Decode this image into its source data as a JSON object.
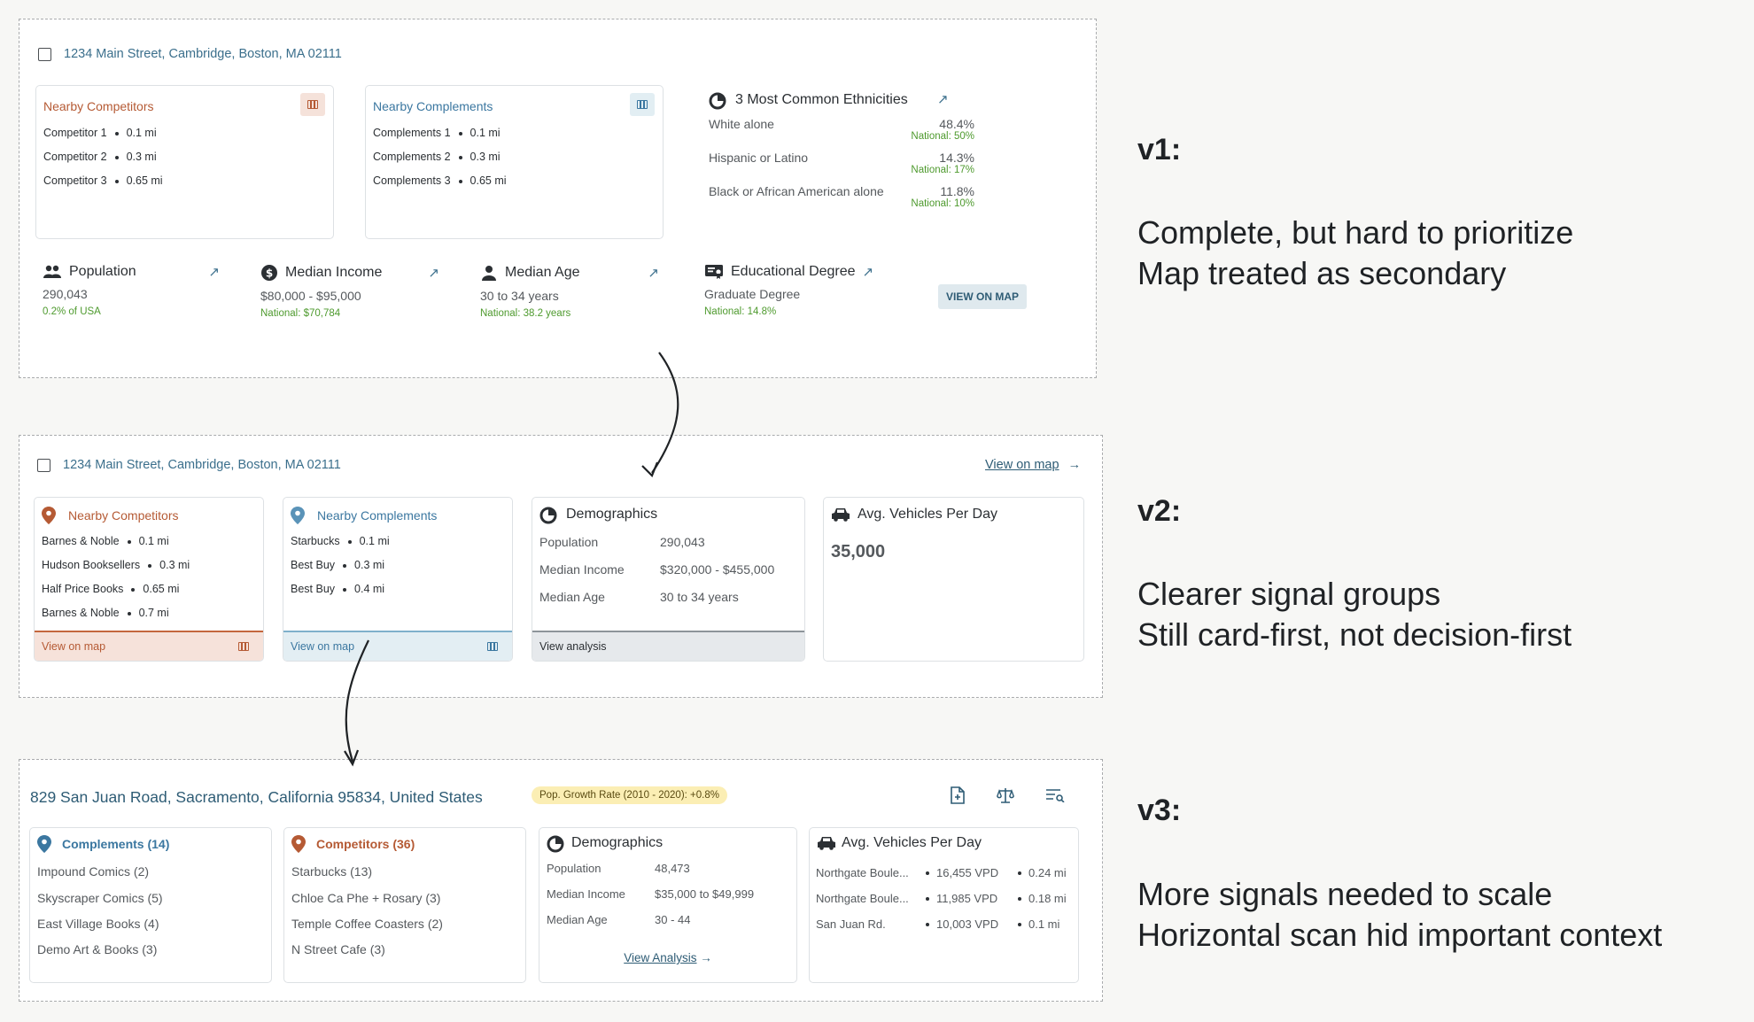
{
  "v1": {
    "address": "1234 Main Street, Cambridge, Boston, MA 02111",
    "competitors": {
      "title": "Nearby Competitors",
      "items": [
        {
          "name": "Competitor 1",
          "dist": "0.1 mi"
        },
        {
          "name": "Competitor 2",
          "dist": "0.3 mi"
        },
        {
          "name": "Competitor 3",
          "dist": "0.65 mi"
        }
      ]
    },
    "complements": {
      "title": "Nearby Complements",
      "items": [
        {
          "name": "Complements 1",
          "dist": "0.1 mi"
        },
        {
          "name": "Complements 2",
          "dist": "0.3 mi"
        },
        {
          "name": "Complements 3",
          "dist": "0.65 mi"
        }
      ]
    },
    "ethnicities": {
      "title": "3 Most Common Ethnicities",
      "items": [
        {
          "name": "White alone",
          "value": "48.4%",
          "national": "National: 50%"
        },
        {
          "name": "Hispanic or Latino",
          "value": "14.3%",
          "national": "National: 17%"
        },
        {
          "name": "Black or African American alone",
          "value": "11.8%",
          "national": "National: 10%"
        }
      ]
    },
    "metrics": [
      {
        "label": "Population",
        "value": "290,043",
        "note": "0.2% of USA"
      },
      {
        "label": "Median Income",
        "value": "$80,000 - $95,000",
        "note": "National: $70,784"
      },
      {
        "label": "Median Age",
        "value": "30 to 34 years",
        "note": "National: 38.2 years"
      },
      {
        "label": "Educational Degree",
        "value": "Graduate Degree",
        "note": "National: 14.8%"
      }
    ],
    "view_on_map": "VIEW ON MAP"
  },
  "v2": {
    "address": "1234 Main Street, Cambridge, Boston, MA 02111",
    "view_on_map_link": "View on map",
    "competitors": {
      "title": "Nearby Competitors",
      "items": [
        {
          "name": "Barnes & Noble",
          "dist": "0.1 mi"
        },
        {
          "name": "Hudson Booksellers",
          "dist": "0.3 mi"
        },
        {
          "name": "Half Price Books",
          "dist": "0.65 mi"
        },
        {
          "name": "Barnes & Noble",
          "dist": "0.7 mi"
        }
      ],
      "footer": "View on map"
    },
    "complements": {
      "title": "Nearby Complements",
      "items": [
        {
          "name": "Starbucks",
          "dist": "0.1 mi"
        },
        {
          "name": "Best Buy",
          "dist": "0.3 mi"
        },
        {
          "name": "Best Buy",
          "dist": "0.4 mi"
        }
      ],
      "footer": "View on map"
    },
    "demographics": {
      "title": "Demographics",
      "rows": [
        {
          "label": "Population",
          "value": "290,043"
        },
        {
          "label": "Median Income",
          "value": "$320,000 - $455,000"
        },
        {
          "label": "Median Age",
          "value": "30 to 34 years"
        }
      ],
      "footer": "View analysis"
    },
    "vehicles": {
      "title": "Avg. Vehicles Per Day",
      "value": "35,000"
    }
  },
  "v3": {
    "address": "829 San Juan Road, Sacramento, California 95834, United States",
    "growth_pill": "Pop. Growth Rate (2010 - 2020): +0.8%",
    "complements": {
      "title": "Complements (14)",
      "items": [
        "Impound Comics (2)",
        "Skyscraper Comics (5)",
        "East Village Books (4)",
        "Demo Art & Books (3)"
      ]
    },
    "competitors": {
      "title": "Competitors (36)",
      "items": [
        "Starbucks (13)",
        "Chloe Ca Phe + Rosary (3)",
        "Temple Coffee Coasters (2)",
        "N Street Cafe (3)"
      ]
    },
    "demographics": {
      "title": "Demographics",
      "rows": [
        {
          "label": "Population",
          "value": "48,473"
        },
        {
          "label": "Median Income",
          "value": "$35,000 to $49,999"
        },
        {
          "label": "Median Age",
          "value": "30 - 44"
        }
      ],
      "link": "View Analysis"
    },
    "vehicles": {
      "title": "Avg. Vehicles Per Day",
      "rows": [
        {
          "road": "Northgate Boule...",
          "vpd": "16,455 VPD",
          "dist": "0.24 mi"
        },
        {
          "road": "Northgate Boule...",
          "vpd": "11,985 VPD",
          "dist": "0.18 mi"
        },
        {
          "road": "San Juan Rd.",
          "vpd": "10,003 VPD",
          "dist": "0.1 mi"
        }
      ]
    }
  },
  "annotations": [
    {
      "label": "v1:",
      "lines": [
        "Complete, but hard to prioritize",
        "Map treated as secondary"
      ]
    },
    {
      "label": "v2:",
      "lines": [
        "Clearer signal groups",
        "Still card-first, not decision-first"
      ]
    },
    {
      "label": "v3:",
      "lines": [
        "More signals needed to scale",
        "Horizontal scan hid important context"
      ]
    }
  ],
  "colors": {
    "rust": "#b55a34",
    "blue": "#3b77a0",
    "green": "#4e9a2e",
    "pill": "#fbeeb4"
  }
}
